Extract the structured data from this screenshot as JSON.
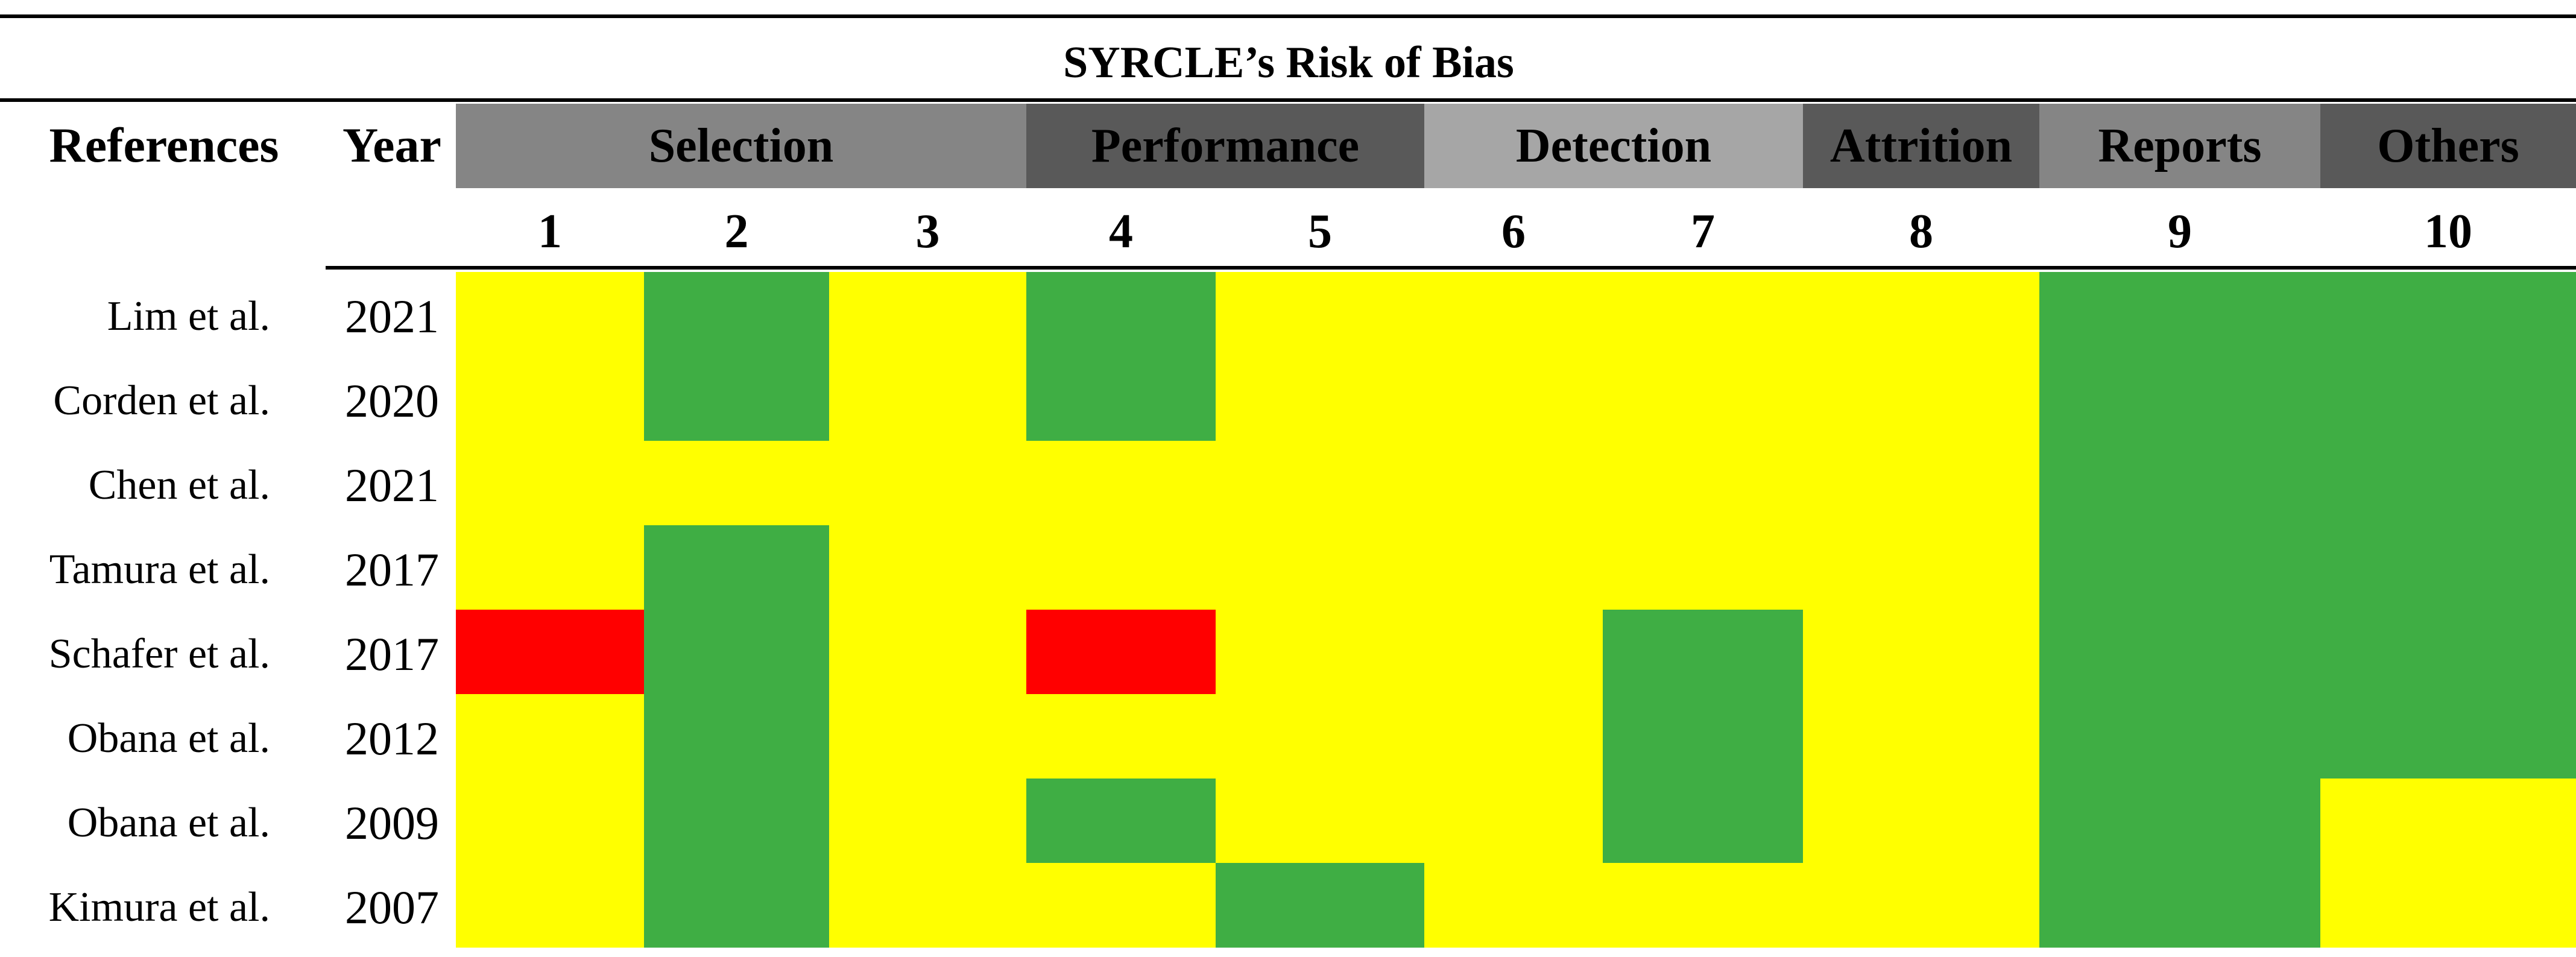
{
  "chart_data": {
    "type": "heatmap",
    "title": "SYRCLE’s Risk of Bias",
    "row_header": "References",
    "year_header": "Year",
    "domains": [
      {
        "name": "Selection",
        "items": [
          1,
          2,
          3
        ],
        "color": "#858585"
      },
      {
        "name": "Performance",
        "items": [
          4,
          5
        ],
        "color": "#595959"
      },
      {
        "name": "Detection",
        "items": [
          6,
          7
        ],
        "color": "#a6a6a6"
      },
      {
        "name": "Attrition",
        "items": [
          8
        ],
        "color": "#595959"
      },
      {
        "name": "Reports",
        "items": [
          9
        ],
        "color": "#858585"
      },
      {
        "name": "Others",
        "items": [
          10
        ],
        "color": "#595959"
      }
    ],
    "items": [
      "1",
      "2",
      "3",
      "4",
      "5",
      "6",
      "7",
      "8",
      "9",
      "10"
    ],
    "rows": [
      {
        "reference": "Lim et al.",
        "year": "2021",
        "cells": [
          "yellow",
          "green",
          "yellow",
          "green",
          "yellow",
          "yellow",
          "yellow",
          "yellow",
          "green",
          "green"
        ]
      },
      {
        "reference": "Corden et al.",
        "year": "2020",
        "cells": [
          "yellow",
          "green",
          "yellow",
          "green",
          "yellow",
          "yellow",
          "yellow",
          "yellow",
          "green",
          "green"
        ]
      },
      {
        "reference": "Chen et al.",
        "year": "2021",
        "cells": [
          "yellow",
          "yellow",
          "yellow",
          "yellow",
          "yellow",
          "yellow",
          "yellow",
          "yellow",
          "green",
          "green"
        ]
      },
      {
        "reference": "Tamura et al.",
        "year": "2017",
        "cells": [
          "yellow",
          "green",
          "yellow",
          "yellow",
          "yellow",
          "yellow",
          "yellow",
          "yellow",
          "green",
          "green"
        ]
      },
      {
        "reference": "Schafer et al.",
        "year": "2017",
        "cells": [
          "red",
          "green",
          "yellow",
          "red",
          "yellow",
          "yellow",
          "green",
          "yellow",
          "green",
          "green"
        ]
      },
      {
        "reference": "Obana et al.",
        "year": "2012",
        "cells": [
          "yellow",
          "green",
          "yellow",
          "yellow",
          "yellow",
          "yellow",
          "green",
          "yellow",
          "green",
          "green"
        ]
      },
      {
        "reference": "Obana et al.",
        "year": "2009",
        "cells": [
          "yellow",
          "green",
          "yellow",
          "green",
          "yellow",
          "yellow",
          "green",
          "yellow",
          "green",
          "yellow"
        ]
      },
      {
        "reference": "Kimura et al.",
        "year": "2007",
        "cells": [
          "yellow",
          "green",
          "yellow",
          "yellow",
          "green",
          "yellow",
          "yellow",
          "yellow",
          "green",
          "yellow"
        ]
      }
    ],
    "colors": {
      "yellow": "#ffff00",
      "green": "#3fae44",
      "red": "#ff0000"
    }
  }
}
